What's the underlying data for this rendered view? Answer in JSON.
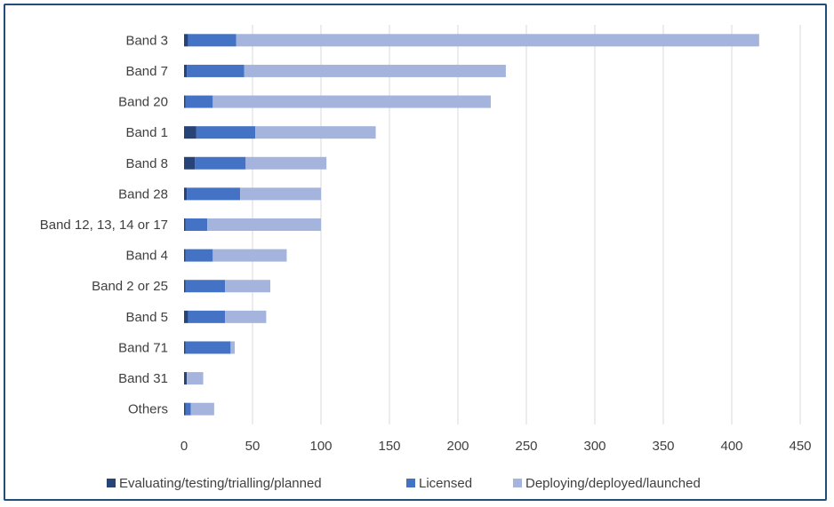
{
  "chart_data": {
    "type": "bar",
    "orientation": "horizontal",
    "stacked": true,
    "categories": [
      "Band 3",
      "Band 7",
      "Band 20",
      "Band 1",
      "Band 8",
      "Band 28",
      "Band 12, 13, 14 or 17",
      "Band 4",
      "Band 2 or 25",
      "Band 5",
      "Band 71",
      "Band 31",
      "Others"
    ],
    "series": [
      {
        "name": "Evaluating/testing/trialling/planned",
        "color": "#264478",
        "values": [
          3,
          2,
          1,
          9,
          8,
          2,
          1,
          1,
          1,
          3,
          1,
          2,
          1
        ]
      },
      {
        "name": "Licensed",
        "color": "#4472c4",
        "values": [
          35,
          42,
          20,
          43,
          37,
          39,
          16,
          20,
          29,
          27,
          33,
          0,
          4
        ]
      },
      {
        "name": "Deploying/deployed/launched",
        "color": "#a5b4dc",
        "values": [
          382,
          191,
          203,
          88,
          59,
          59,
          83,
          54,
          33,
          30,
          3,
          12,
          17
        ]
      }
    ],
    "xlim": [
      0,
      450
    ],
    "xticks": [
      0,
      50,
      100,
      150,
      200,
      250,
      300,
      350,
      400,
      450
    ],
    "grid": true,
    "legend_position": "bottom",
    "title": "",
    "xlabel": "",
    "ylabel": ""
  }
}
